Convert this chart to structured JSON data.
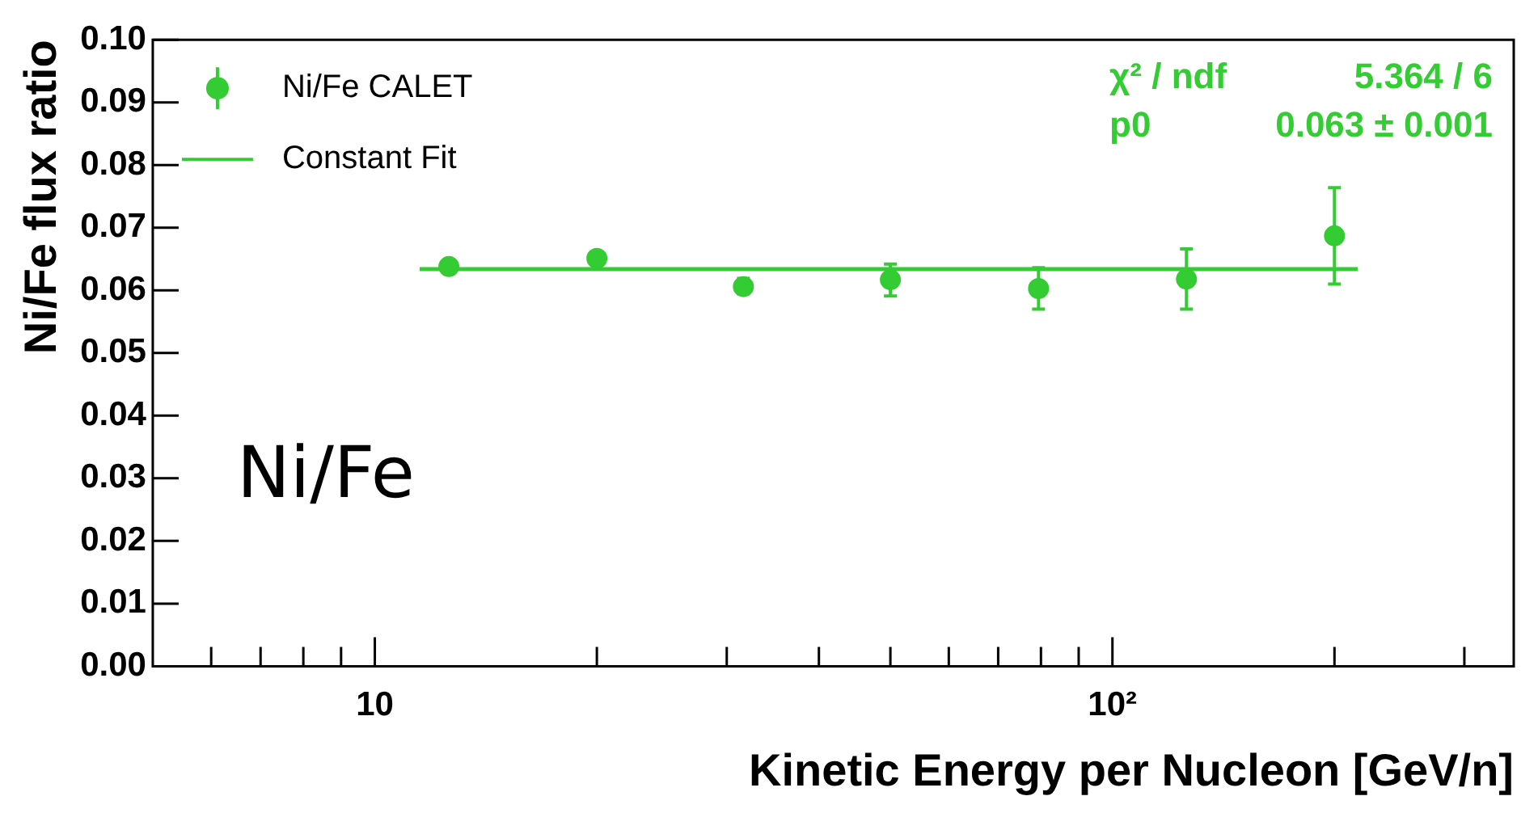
{
  "chart_data": {
    "type": "scatter",
    "xlabel": "Kinetic Energy per Nucleon [GeV/n]",
    "ylabel": "Ni/Fe flux ratio",
    "log": "x",
    "grid": false,
    "legend": "top left",
    "marker": "circle",
    "xlim": [
      5,
      350
    ],
    "xticks": [
      {
        "value": 6,
        "label": null
      },
      {
        "value": 7,
        "label": null
      },
      {
        "value": 8,
        "label": null
      },
      {
        "value": 9,
        "label": null
      },
      {
        "value": 10,
        "label": "10"
      },
      {
        "value": 20,
        "label": null
      },
      {
        "value": 30,
        "label": null
      },
      {
        "value": 40,
        "label": null
      },
      {
        "value": 50,
        "label": null
      },
      {
        "value": 60,
        "label": null
      },
      {
        "value": 70,
        "label": null
      },
      {
        "value": 80,
        "label": null
      },
      {
        "value": 90,
        "label": null
      },
      {
        "value": 100,
        "label": "10²"
      },
      {
        "value": 200,
        "label": null
      },
      {
        "value": 300,
        "label": null
      }
    ],
    "ylim": [
      0,
      0.1
    ],
    "yticks": [
      {
        "value": 0,
        "label": "0.00"
      },
      {
        "value": 0.01,
        "label": "0.01"
      },
      {
        "value": 0.02,
        "label": "0.02"
      },
      {
        "value": 0.03,
        "label": "0.03"
      },
      {
        "value": 0.04,
        "label": "0.04"
      },
      {
        "value": 0.05,
        "label": "0.05"
      },
      {
        "value": 0.06,
        "label": "0.06"
      },
      {
        "value": 0.07,
        "label": "0.07"
      },
      {
        "value": 0.08,
        "label": "0.08"
      },
      {
        "value": 0.09,
        "label": "0.09"
      },
      {
        "value": 0.1,
        "label": "0.10"
      }
    ],
    "series": [
      {
        "name": "Ni/Fe CALET",
        "color": "#33cc33",
        "x": [
          12.6,
          20,
          31.6,
          50,
          79.4,
          126,
          200
        ],
        "values": [
          0.0638,
          0.0651,
          0.0606,
          0.0617,
          0.0603,
          0.0618,
          0.0687
        ],
        "errors": [
          null,
          null,
          [
            0.0595,
            0.0619
          ],
          [
            0.0591,
            0.0642
          ],
          [
            0.057,
            0.0636
          ],
          [
            0.057,
            0.0666
          ],
          [
            0.061,
            0.0764
          ]
        ]
      },
      {
        "name": "Constant Fit",
        "type": "line",
        "color": "#33cc33",
        "marker": "none",
        "x": [
          11.5,
          215
        ],
        "values": [
          0.0634,
          0.0634
        ]
      }
    ],
    "annotations": [
      "χ² / ndf",
      "5.364 / 6",
      "p0",
      "0.063 ± 0.001",
      "Ni/Fe"
    ]
  }
}
